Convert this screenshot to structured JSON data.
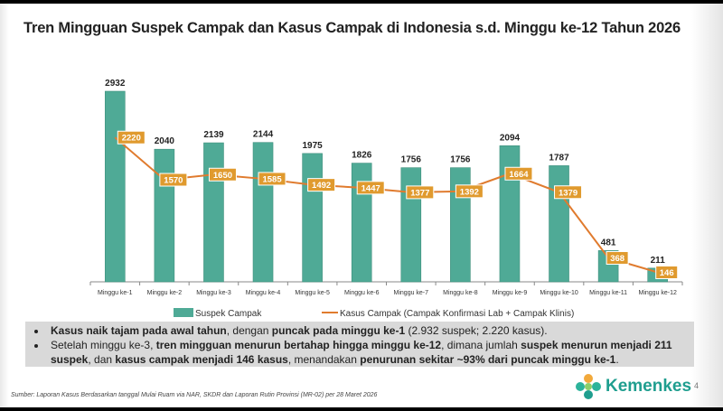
{
  "slide": {
    "title": "Tren Mingguan Suspek Campak dan Kasus Campak di Indonesia s.d. Minggu ke-12 Tahun 2026",
    "page_number": "4",
    "source": "Sumber: Laporan Kasus Berdasarkan tanggal Mulai Ruam via  NAR, SKDR dan  Laporan Rutin Provinsi (MR-02) per 28 Maret  2026",
    "logo_text": "Kemenkes",
    "notes": [
      [
        {
          "t": "Kasus naik tajam pada awal tahun",
          "b": true
        },
        {
          "t": ", dengan ",
          "b": false
        },
        {
          "t": "puncak pada minggu ke-1",
          "b": true
        },
        {
          "t": " (2.932 suspek; 2.220 kasus).",
          "b": false
        }
      ],
      [
        {
          "t": "Setelah minggu ke-3, ",
          "b": false
        },
        {
          "t": "tren mingguan menurun bertahap hingga minggu ke-12",
          "b": true
        },
        {
          "t": ", dimana jumlah ",
          "b": false
        },
        {
          "t": "suspek menurun menjadi 211 suspek",
          "b": true
        },
        {
          "t": ", dan ",
          "b": false
        },
        {
          "t": "kasus campak menjadi 146 kasus",
          "b": true
        },
        {
          "t": ", menandakan ",
          "b": false
        },
        {
          "t": "penurunan sekitar ~93% dari puncak minggu ke-1",
          "b": true
        },
        {
          "t": ".",
          "b": false
        }
      ]
    ]
  },
  "colors": {
    "bar": "#4faa96",
    "line": "#e07b2e",
    "label_box": "#e09a2e"
  },
  "chart_data": {
    "type": "bar",
    "title": "Tren Mingguan Suspek Campak dan Kasus Campak di Indonesia s.d. Minggu ke-12 Tahun 2026",
    "categories": [
      "Minggu ke-1",
      "Minggu ke-2",
      "Minggu ke-3",
      "Minggu ke-4",
      "Minggu ke-5",
      "Minggu ke-6",
      "Minggu ke-7",
      "Minggu ke-8",
      "Minggu ke-9",
      "Minggu ke-10",
      "Minggu ke-11",
      "Minggu ke-12"
    ],
    "series": [
      {
        "name": "Suspek Campak",
        "type": "bar",
        "values": [
          2932,
          2040,
          2139,
          2144,
          1975,
          1826,
          1756,
          1756,
          2094,
          1787,
          481,
          211
        ]
      },
      {
        "name": "Kasus Campak (Campak Konfirmasi Lab + Campak Klinis)",
        "type": "line",
        "values": [
          2220,
          1570,
          1650,
          1585,
          1492,
          1447,
          1377,
          1392,
          1664,
          1379,
          368,
          146
        ]
      }
    ],
    "ylim": [
      0,
      2932
    ],
    "grid": false,
    "legend": "bottom"
  }
}
